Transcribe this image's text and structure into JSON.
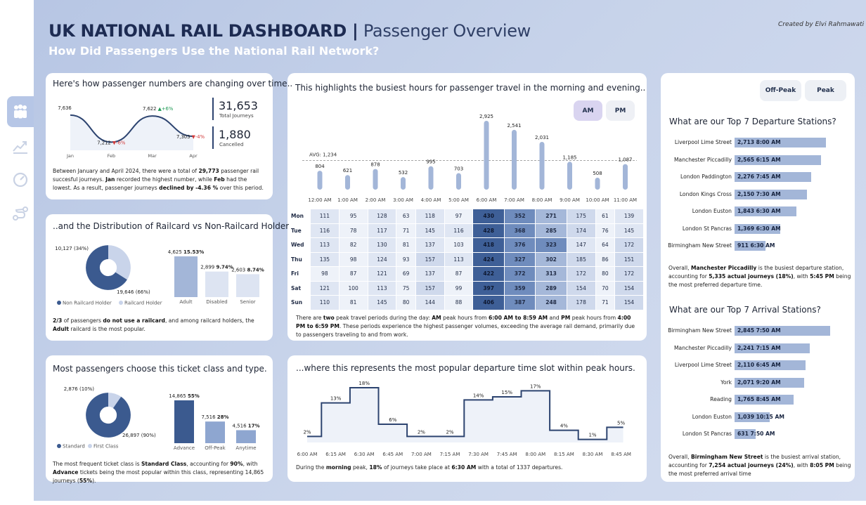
{
  "header": {
    "title_main": "UK NATIONAL RAIL DASHBOARD |",
    "title_sub": " Passenger Overview",
    "subtitle": "How Did Passengers Use the National Rail Network?",
    "credit": "Created by Elvi Rahmawati"
  },
  "nav": [
    "people-icon",
    "growth-chart-icon",
    "gauge-icon",
    "route-icon"
  ],
  "trend": {
    "heading": "Here's how passenger numbers are changing over time..",
    "months": [
      "Jan",
      "Feb",
      "Mar",
      "Apr"
    ],
    "values": [
      7636,
      7212,
      7622,
      7303
    ],
    "value_labels": [
      "7,636",
      "7,212",
      "7,622",
      "7,303"
    ],
    "changes": [
      "",
      "-6%",
      "+6%",
      "-4%"
    ],
    "total_journeys": "31,653",
    "total_label": "Total Journeys",
    "cancelled": "1,880",
    "cancelled_label": "Cancelled",
    "note": "Between January and April 2024, there were a total of <b>29,773</b> passenger rail succesful journeys. <b>Jan</b> recorded the highest number, while <b>Feb</b> had the lowest.  As a result, passenger journeys <b>declined by -4.36 %</b> over this period."
  },
  "railcard": {
    "heading": "..and the Distribution of Railcard vs Non-Railcard Holders.",
    "donut": [
      {
        "label": "Non Railcard Holder",
        "value": 19646,
        "text": "19,646 (66%)",
        "color": "#3b5a8f"
      },
      {
        "label": "Railcard Holder",
        "value": 10127,
        "text": "10,127 (34%)",
        "color": "#c9d4ea"
      }
    ],
    "bars": [
      {
        "cat": "Adult",
        "value": 4625,
        "num": "4,625",
        "pct": "15.53%"
      },
      {
        "cat": "Disabled",
        "value": 2899,
        "num": "2,899",
        "pct": "9.74%"
      },
      {
        "cat": "Senior",
        "value": 2603,
        "num": "2,603",
        "pct": "8.74%"
      }
    ],
    "note": "<b>2/3</b> of passengers <b>do not use a railcard</b>, and among railcard holders, the <b>Adult</b> railcard is the most popular."
  },
  "ticket": {
    "heading": "Most passengers choose this ticket class and type.",
    "donut": [
      {
        "label": "Standard",
        "value": 26897,
        "text": "26,897 (90%)",
        "color": "#3b5a8f"
      },
      {
        "label": "First Class",
        "value": 2876,
        "text": "2,876 (10%)",
        "color": "#c9d4ea"
      }
    ],
    "bars": [
      {
        "cat": "Advance",
        "value": 14865,
        "num": "14,865",
        "pct": "55%"
      },
      {
        "cat": "Off-Peak",
        "value": 7516,
        "num": "7,516",
        "pct": "28%"
      },
      {
        "cat": "Anytime",
        "value": 4516,
        "num": "4,516",
        "pct": "17%"
      }
    ],
    "note": "The most frequent ticket class is <b>Standard Class</b>, accounting for <b>90%</b>, with <b>Advance</b> tickets being the most popular within this class, representing 14,865 journeys (<b>55%</b>)."
  },
  "hours": {
    "heading": "This highlights the busiest hours for passenger travel in the morning and evening..",
    "am_label": "AM",
    "pm_label": "PM",
    "avg_label": "AVG: 1,234",
    "avg": 1234,
    "times": [
      "12:00 AM",
      "1:00 AM",
      "2:00 AM",
      "3:00 AM",
      "4:00 AM",
      "5:00 AM",
      "6:00 AM",
      "7:00 AM",
      "8:00 AM",
      "9:00 AM",
      "10:00 AM",
      "11:00 AM"
    ],
    "totals": [
      804,
      621,
      878,
      532,
      995,
      703,
      2925,
      2541,
      2031,
      1185,
      508,
      1087
    ],
    "total_labels": [
      "804",
      "621",
      "878",
      "532",
      "995",
      "703",
      "2,925",
      "2,541",
      "2,031",
      "1,185",
      "508",
      "1,087"
    ],
    "days": [
      "Mon",
      "Tue",
      "Wed",
      "Thu",
      "Fri",
      "Sat",
      "Sun"
    ],
    "grid": [
      [
        111,
        95,
        128,
        63,
        118,
        97,
        430,
        352,
        271,
        175,
        61,
        139
      ],
      [
        116,
        78,
        117,
        71,
        145,
        116,
        428,
        368,
        285,
        174,
        76,
        145
      ],
      [
        113,
        82,
        130,
        81,
        137,
        103,
        418,
        376,
        323,
        147,
        64,
        172
      ],
      [
        135,
        98,
        124,
        93,
        157,
        113,
        424,
        327,
        302,
        185,
        86,
        151
      ],
      [
        98,
        87,
        121,
        69,
        137,
        87,
        422,
        372,
        313,
        172,
        80,
        172
      ],
      [
        121,
        100,
        113,
        75,
        157,
        99,
        397,
        359,
        289,
        154,
        70,
        154
      ],
      [
        110,
        81,
        145,
        80,
        144,
        88,
        406,
        387,
        248,
        178,
        71,
        154
      ]
    ],
    "note": "There are <b>two</b> peak travel periods during the day: <b>AM</b> peak hours from <b>6:00 AM to 8:59 AM</b> and <b>PM</b> peak hours from <b>4:00 PM to 6:59 PM</b>. These periods experience the highest passenger volumes, exceeding the average rail demand, primarily due to passengers traveling to and from work."
  },
  "slots": {
    "heading": "...where this represents the most popular departure time slot within peak hours.",
    "times": [
      "6:00 AM",
      "6:15 AM",
      "6:30 AM",
      "6:45 AM",
      "7:00 AM",
      "7:15 AM",
      "7:30 AM",
      "7:45 AM",
      "8:00 AM",
      "8:15 AM",
      "8:30 AM",
      "8:45 AM"
    ],
    "values": [
      2,
      13,
      18,
      6,
      2,
      2,
      14,
      15,
      17,
      4,
      1,
      5
    ],
    "labels": [
      "2%",
      "13%",
      "18%",
      "6%",
      "2%",
      "2%",
      "14%",
      "15%",
      "17%",
      "4%",
      "1%",
      "5%"
    ],
    "note": "During the <b>morning</b> peak, <b>18%</b> of journeys take place at <b>6:30 AM</b> with a total of 1337 departures."
  },
  "stations": {
    "offpeak_label": "Off-Peak",
    "peak_label": "Peak",
    "dep_heading": "What are our Top 7 Departure Stations?",
    "departures": [
      {
        "name": "Liverpool Lime Street",
        "value": 2713,
        "text": "2,713 8:00 AM"
      },
      {
        "name": "Manchester Piccadilly",
        "value": 2565,
        "text": "2,565 6:15 AM"
      },
      {
        "name": "London Paddington",
        "value": 2276,
        "text": "2,276 7:45 AM"
      },
      {
        "name": "London Kings Cross",
        "value": 2150,
        "text": "2,150 7:30 AM"
      },
      {
        "name": "London Euston",
        "value": 1843,
        "text": "1,843 6:30 AM"
      },
      {
        "name": "London St Pancras",
        "value": 1369,
        "text": "1,369 6:30 AM"
      },
      {
        "name": "Birmingham New Street",
        "value": 911,
        "text": "911 6:30 AM"
      }
    ],
    "dep_note": "Overall, <b>Manchester Piccadilly</b> is the busiest departure station, accounting for <b>5,335 actual journeys (18%)</b>, with <b>5:45 PM</b> being the most preferred departure time.",
    "arr_heading": "What are our Top 7 Arrival Stations?",
    "arrivals": [
      {
        "name": "Birmingham New Street",
        "value": 2845,
        "text": "2,845 7:50 AM"
      },
      {
        "name": "Manchester Piccadilly",
        "value": 2241,
        "text": "2,241 7:15 AM"
      },
      {
        "name": "Liverpool Lime Street",
        "value": 2110,
        "text": "2,110 6:45 AM"
      },
      {
        "name": "York",
        "value": 2071,
        "text": "2,071 9:20 AM"
      },
      {
        "name": "Reading",
        "value": 1765,
        "text": "1,765 8:45 AM"
      },
      {
        "name": "London Euston",
        "value": 1039,
        "text": "1,039 10:15 AM"
      },
      {
        "name": "London St Pancras",
        "value": 631,
        "text": "631 7:50 AM"
      }
    ],
    "arr_note": "Overall, <b>Birmingham New Street</b> is the busiest arrival station, accounting for <b>7,254 actual journeys (24%)</b>, with <b>8:05 PM</b> being the most preferred arrival time"
  },
  "colors": {
    "dark": "#3b5a8f",
    "mid": "#8ea6d0",
    "light": "#c9d4ea",
    "line": "#2d4470",
    "up": "#1f9a55",
    "down": "#d23b3b"
  }
}
